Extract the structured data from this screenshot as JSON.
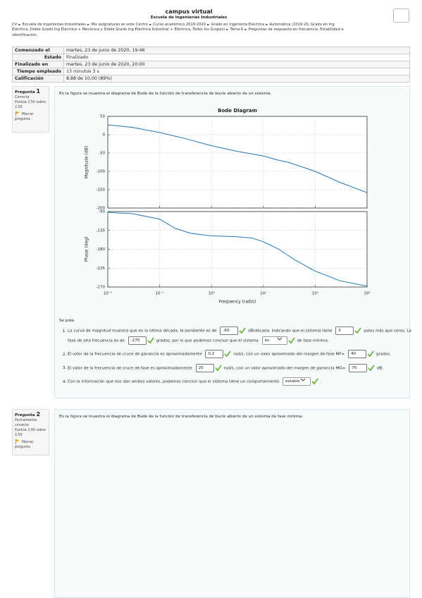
{
  "header": {
    "title": "campus virtual",
    "subtitle": "Escuela de Ingenierías Industriales"
  },
  "breadcrumb": {
    "separator": "►",
    "items": [
      "CV",
      "Escuela de Ingenierías Industriales",
      "Mis asignaturas en este Centro",
      "Curso académico 2019-2020",
      "Grado en Ingeniería Eléctrica",
      "Automática (2019-20, Grado en Ing Eléctrica, Doble Grado Ing Eléctrica + Mecánica y Doble Grado Ing Eléctrica Industrial + Eléctrica, Todos los Grupos)",
      "Tema 6",
      "Preguntas de respuesta en frecuencia. Estabilidad e identificación."
    ]
  },
  "summary": {
    "rows": [
      [
        "Comenzado el",
        "martes, 23 de junio de 2020, 19:46"
      ],
      [
        "Estado",
        "Finalizado"
      ],
      [
        "Finalizado en",
        "martes, 23 de junio de 2020, 20:00"
      ],
      [
        "Tiempo empleado",
        "13 minutos 3 s"
      ],
      [
        "Calificación",
        "8,88 de 10,00 (89%)"
      ]
    ]
  },
  "questions": [
    {
      "label": "Pregunta",
      "number": "1",
      "state": "Correcta",
      "grade": "Puntúa 2,50 sobre 2,50",
      "flag": "Marcar pregunta",
      "text": "En la figura se muestra el diagrama de Bode de la función de transferencia de bucle abierto de un sistema.",
      "prompt": "Se pide:",
      "items": [
        [
          {
            "t": "La curva de magnitud muestra que en la última década, la pendiente es de"
          },
          {
            "input": "-60"
          },
          {
            "t": "dB/década, indicando que el sistema tiene"
          },
          {
            "input": "3"
          },
          {
            "t": "polos más que ceros. La fase de alta frecuencia es de"
          },
          {
            "input": "-270"
          },
          {
            "t": "grados, por lo que podemos concluir que el sistema"
          },
          {
            "select": "es"
          },
          {
            "t": "de fase mínima."
          }
        ],
        [
          {
            "t": "El valor de la frecuencia de cruce de ganancia es aproximadamente"
          },
          {
            "input": "0,2"
          },
          {
            "t": "rad/s, con un valor aproximado del margen de fase MF="
          },
          {
            "input": "40"
          },
          {
            "t": "grados."
          }
        ],
        [
          {
            "t": "El valor de la frecuencia de cruce de fase es aproximadamente"
          },
          {
            "input": "20"
          },
          {
            "t": "rad/s, con un valor aproximado del margen de ganancia MG="
          },
          {
            "input": "70"
          },
          {
            "t": "dB."
          }
        ],
        [
          {
            "t": "Con la información que nos dan ambos valores, podemos concluir que el sistema tiene un comportamiento"
          },
          {
            "select": "estable"
          },
          {
            "t": "."
          }
        ]
      ]
    },
    {
      "label": "Pregunta",
      "number": "2",
      "state": "Parcialmente correcta",
      "grade": "Puntúa 2,00 sobre 2,50",
      "flag": "Marcar pregunta",
      "text": "En la figura se muestra el diagrama de Bode de la función de transferencia de bucle abierto de un sistema de fase mínima:"
    }
  ],
  "chart_data": {
    "type": "line",
    "title": "Bode Diagram",
    "xlabel": "Frequency  (rad/s)",
    "log_x": true,
    "grid": true,
    "xlim": [
      0.01,
      1000
    ],
    "xticks": [
      {
        "value": 0.01,
        "label": "10⁻²"
      },
      {
        "value": 0.1,
        "label": "10⁻¹"
      },
      {
        "value": 1,
        "label": "10⁰"
      },
      {
        "value": 10,
        "label": "10¹"
      },
      {
        "value": 100,
        "label": "10²"
      },
      {
        "value": 1000,
        "label": "10³"
      }
    ],
    "panels": [
      {
        "ylabel": "Magnitude (dB)",
        "ylim": [
          -200,
          50
        ],
        "yticks": [
          -200,
          -150,
          -100,
          -50,
          0,
          50
        ],
        "x": [
          0.01,
          0.03,
          0.1,
          0.15,
          0.3,
          1,
          3,
          10,
          20,
          30,
          100,
          300,
          1000
        ],
        "series": [
          {
            "color": "#1f77b4",
            "values": [
              27,
              20,
              6,
              0,
              -10,
              -30,
              -45,
              -58,
              -70,
              -75,
              -100,
              -130,
              -158
            ]
          }
        ]
      },
      {
        "ylabel": "Phase (deg)",
        "ylim": [
          -270,
          -90
        ],
        "yticks": [
          -270,
          -225,
          -180,
          -135,
          -90
        ],
        "x": [
          0.01,
          0.03,
          0.1,
          0.2,
          0.4,
          1,
          3,
          6,
          10,
          20,
          40,
          100,
          300,
          1000
        ],
        "series": [
          {
            "color": "#1f77b4",
            "values": [
              -92,
              -95,
              -108,
              -130,
              -142,
              -148,
              -150,
              -153,
              -162,
              -180,
              -205,
              -232,
              -255,
              -268
            ]
          }
        ]
      }
    ]
  }
}
